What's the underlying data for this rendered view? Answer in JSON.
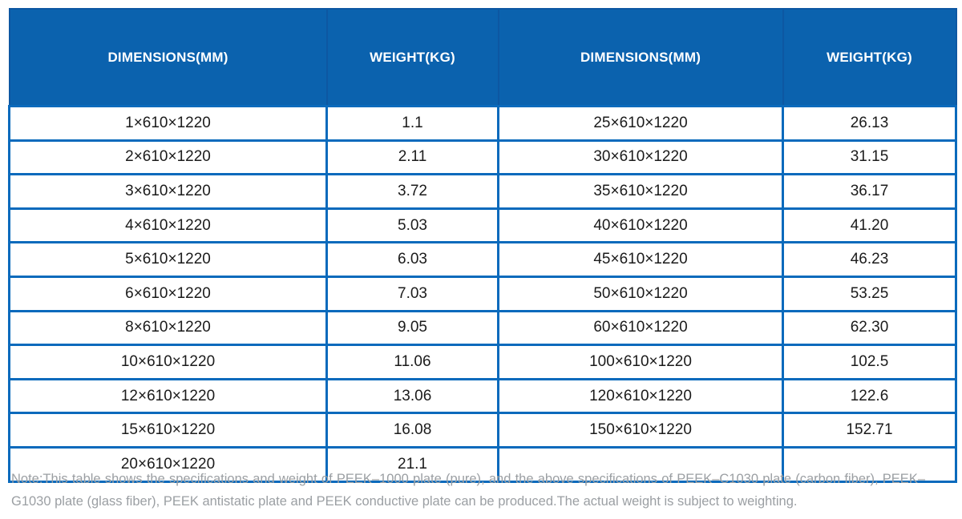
{
  "table": {
    "columns": [
      "DIMENSIONS(MM)",
      "WEIGHT(KG)",
      "DIMENSIONS(MM)",
      "WEIGHT(KG)"
    ],
    "rows": [
      [
        "1×610×1220",
        "1.1",
        "25×610×1220",
        "26.13"
      ],
      [
        "2×610×1220",
        "2.11",
        "30×610×1220",
        "31.15"
      ],
      [
        "3×610×1220",
        "3.72",
        "35×610×1220",
        "36.17"
      ],
      [
        "4×610×1220",
        "5.03",
        "40×610×1220",
        "41.20"
      ],
      [
        "5×610×1220",
        "6.03",
        "45×610×1220",
        "46.23"
      ],
      [
        "6×610×1220",
        "7.03",
        "50×610×1220",
        "53.25"
      ],
      [
        "8×610×1220",
        "9.05",
        "60×610×1220",
        "62.30"
      ],
      [
        "10×610×1220",
        "11.06",
        "100×610×1220",
        "102.5"
      ],
      [
        "12×610×1220",
        "13.06",
        "120×610×1220",
        "122.6"
      ],
      [
        "15×610×1220",
        "16.08",
        "150×610×1220",
        "152.71"
      ],
      [
        "20×610×1220",
        "21.1",
        "",
        ""
      ]
    ]
  },
  "note": "Note:This table shows the specifications and weight of PEEK–1000 plate (pure), and the above specifications of PEEK–C1030 plate (carbon fiber), PEEK–G1030 plate (glass fiber), PEEK antistatic plate and PEEK conductive plate can be produced.The actual weight is subject to weighting.",
  "colors": {
    "header_bg": "#0b62ae",
    "header_divider": "#0d57a2",
    "grid_line": "#0a6abc",
    "body_text": "#1b1b1b",
    "note_text": "#9b9fa3"
  }
}
